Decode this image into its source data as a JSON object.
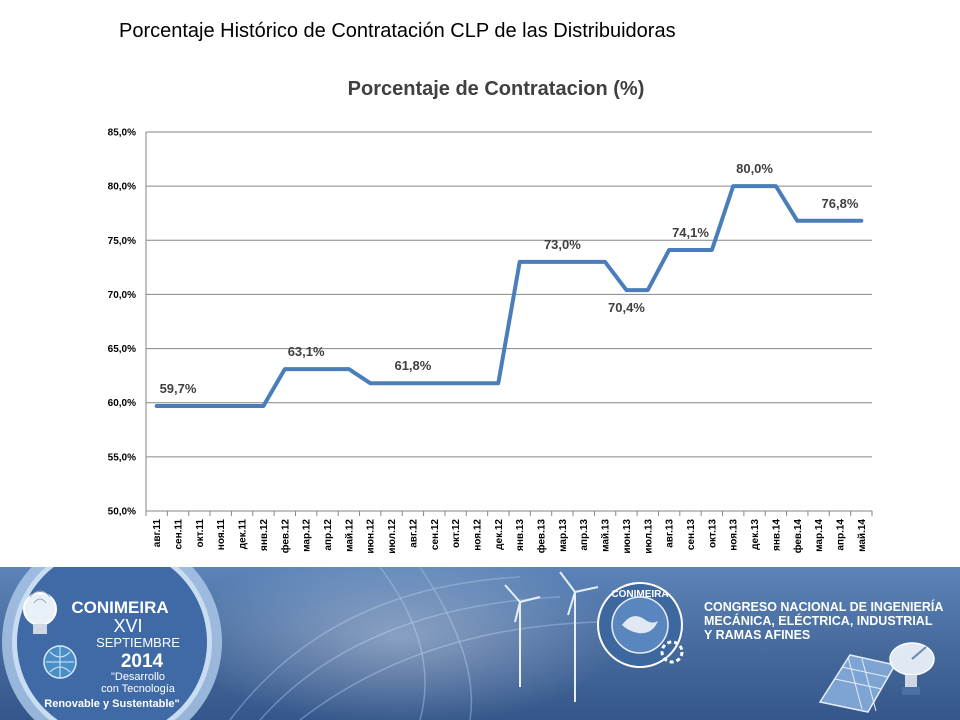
{
  "slide": {
    "title": "Porcentaje Histórico de Contratación CLP de las Distribuidoras"
  },
  "chart_data": {
    "type": "line",
    "title": "Porcentaje de Contratacion (%)",
    "xlabel": "",
    "ylabel": "",
    "ylim": [
      50,
      85
    ],
    "yticks": [
      "50,0%",
      "55,0%",
      "60,0%",
      "65,0%",
      "70,0%",
      "75,0%",
      "80,0%",
      "85,0%"
    ],
    "grid": true,
    "legend": "none",
    "line_color": "#4a7ebb",
    "categories": [
      "авг.11",
      "сен.11",
      "окт.11",
      "ноя.11",
      "дек.11",
      "янв.12",
      "фев.12",
      "мар.12",
      "апр.12",
      "май.12",
      "июн.12",
      "июл.12",
      "авг.12",
      "сен.12",
      "окт.12",
      "ноя.12",
      "дек.12",
      "янв.13",
      "фев.13",
      "мар.13",
      "апр.13",
      "май.13",
      "июн.13",
      "июл.13",
      "авг.13",
      "сен.13",
      "окт.13",
      "ноя.13",
      "дек.13",
      "янв.14",
      "фев.14",
      "мар.14",
      "апр.14",
      "май.14"
    ],
    "series": [
      {
        "values": [
          59.7,
          59.7,
          59.7,
          59.7,
          59.7,
          59.7,
          63.1,
          63.1,
          63.1,
          63.1,
          61.8,
          61.8,
          61.8,
          61.8,
          61.8,
          61.8,
          61.8,
          73.0,
          73.0,
          73.0,
          73.0,
          73.0,
          70.4,
          70.4,
          74.1,
          74.1,
          74.1,
          80.0,
          80.0,
          80.0,
          76.8,
          76.8,
          76.8,
          76.8
        ]
      }
    ],
    "data_labels": [
      {
        "index": 1,
        "text": "59,7%"
      },
      {
        "index": 7,
        "text": "63,1%"
      },
      {
        "index": 12,
        "text": "61,8%"
      },
      {
        "index": 19,
        "text": "73,0%"
      },
      {
        "index": 22,
        "text": "70,4%"
      },
      {
        "index": 25,
        "text": "74,1%"
      },
      {
        "index": 28,
        "text": "80,0%"
      },
      {
        "index": 32,
        "text": "76,8%"
      }
    ]
  },
  "banner": {
    "logo_word": "CONIMEIRA",
    "edition": "XVI",
    "month": "SEPTIEMBRE",
    "year": "2014",
    "slogan": [
      "\"Desarrollo",
      "con Tecnología",
      "Renovable y Sustentable\""
    ],
    "ring_text": "CONIMEIRA",
    "congress": [
      "CONGRESO NACIONAL DE INGENIERÍA",
      "MECÁNICA, ELÉCTRICA, INDUSTRIAL",
      "Y RAMAS AFINES"
    ]
  }
}
